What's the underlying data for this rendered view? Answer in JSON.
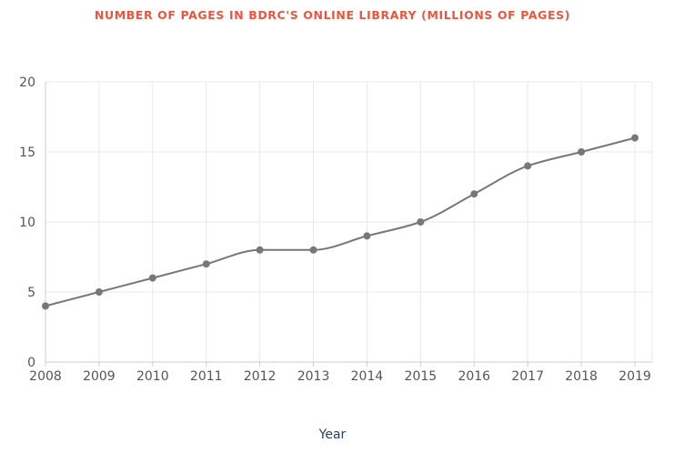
{
  "chart_data": {
    "type": "line",
    "title": "NUMBER OF PAGES IN BDRC'S ONLINE LIBRARY (MILLIONS OF PAGES)",
    "xlabel": "Year",
    "ylabel": "",
    "x": [
      "2008",
      "2009",
      "2010",
      "2011",
      "2012",
      "2013",
      "2014",
      "2015",
      "2016",
      "2017",
      "2018",
      "2019"
    ],
    "series": [
      {
        "values": [
          4,
          5,
          6,
          7,
          8,
          8,
          9,
          10,
          12,
          14,
          15,
          16
        ]
      }
    ],
    "ylim": [
      0,
      20
    ],
    "yticks": [
      "0",
      "5",
      "10",
      "15",
      "20"
    ],
    "grid": true,
    "legend": "none",
    "colors": {
      "title": "#e8563f",
      "line": "#777777",
      "grid": "#e8e8e8",
      "axis_label": "#2f3e55"
    }
  }
}
